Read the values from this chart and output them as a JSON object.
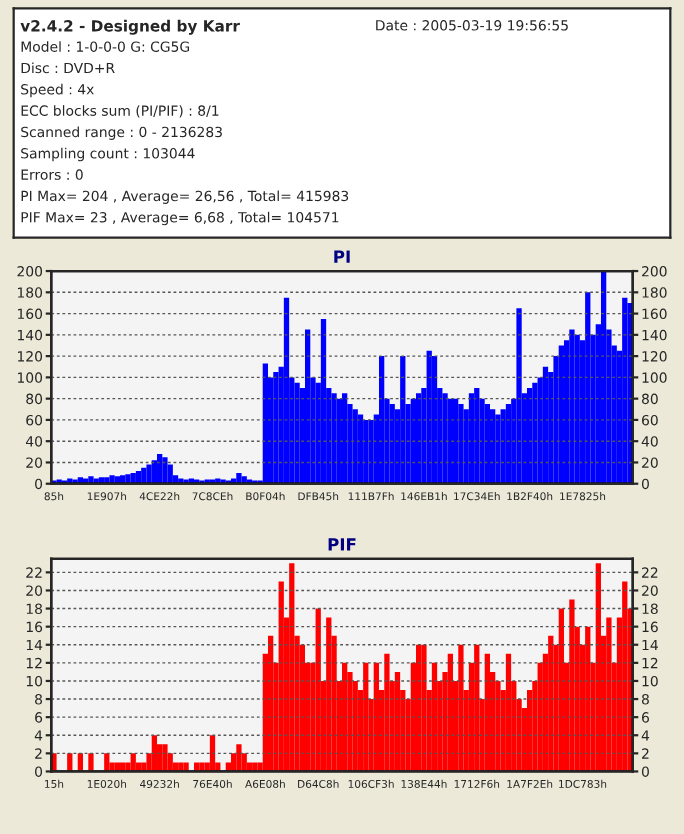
{
  "chart_data": [
    {
      "type": "other",
      "title": "v2.4.2 - Designed by Karr",
      "annotations": [
        "Date : 2005-03-19 19:56:55",
        "Model : 1-0-0-0 G: CG5G",
        "Disc : DVD+R",
        "Speed : 4x",
        "ECC blocks sum (PI/PIF) : 8/1",
        "Scanned range : 0 - 2136283",
        "Sampling count : 103044",
        "Errors : 0",
        "PI Max= 204 , Average= 26,56 , Total= 415983",
        "PIF Max= 23 , Average= 6,68 , Total= 104571"
      ]
    },
    {
      "type": "bar",
      "title": "PI",
      "grid": "y",
      "ylim": [
        0,
        200
      ],
      "yticks": [
        0,
        20,
        40,
        60,
        80,
        100,
        120,
        140,
        160,
        180,
        200
      ],
      "y2lim": [
        0,
        200
      ],
      "y2ticks": [
        0,
        20,
        40,
        60,
        80,
        100,
        120,
        140,
        160,
        180,
        200
      ],
      "categories": [
        "85h",
        null,
        null,
        null,
        null,
        null,
        null,
        null,
        null,
        null,
        "1E907h",
        null,
        null,
        null,
        null,
        null,
        null,
        null,
        null,
        null,
        "4CE22h",
        null,
        null,
        null,
        null,
        null,
        null,
        null,
        null,
        null,
        "7C8CEh",
        null,
        null,
        null,
        null,
        null,
        null,
        null,
        null,
        null,
        "B0F04h",
        null,
        null,
        null,
        null,
        null,
        null,
        null,
        null,
        null,
        "DFB45h",
        null,
        null,
        null,
        null,
        null,
        null,
        null,
        null,
        null,
        "111B7Fh",
        null,
        null,
        null,
        null,
        null,
        null,
        null,
        null,
        null,
        "146EB1h",
        null,
        null,
        null,
        null,
        null,
        null,
        null,
        null,
        null,
        "17C34Eh",
        null,
        null,
        null,
        null,
        null,
        null,
        null,
        null,
        null,
        "1B2F40h",
        null,
        null,
        null,
        null,
        null,
        null,
        null,
        null,
        null,
        "1E7825h",
        null,
        null,
        null,
        null,
        null,
        null,
        null,
        null,
        null
      ],
      "series": [
        {
          "color": "#0000ff",
          "values": [
            3,
            4,
            3,
            5,
            4,
            6,
            5,
            7,
            5,
            6,
            6,
            8,
            7,
            8,
            9,
            10,
            12,
            15,
            18,
            22,
            28,
            25,
            18,
            8,
            5,
            4,
            5,
            4,
            3,
            4,
            4,
            5,
            4,
            3,
            5,
            10,
            7,
            4,
            3,
            3,
            113,
            100,
            105,
            110,
            175,
            100,
            95,
            90,
            145,
            100,
            95,
            155,
            90,
            85,
            80,
            85,
            75,
            70,
            65,
            60,
            60,
            65,
            120,
            80,
            75,
            70,
            120,
            75,
            80,
            85,
            90,
            125,
            120,
            90,
            85,
            80,
            80,
            75,
            70,
            85,
            90,
            80,
            75,
            70,
            65,
            70,
            75,
            80,
            165,
            85,
            90,
            95,
            100,
            110,
            105,
            120,
            130,
            135,
            145,
            140,
            135,
            180,
            140,
            150,
            200,
            145,
            130,
            125,
            175,
            170
          ]
        }
      ]
    },
    {
      "type": "bar",
      "title": "PIF",
      "grid": "y",
      "ylim": [
        0,
        23.5
      ],
      "yticks": [
        0,
        2,
        4,
        6,
        8,
        10,
        12,
        14,
        16,
        18,
        20,
        22
      ],
      "y2lim": [
        0,
        23.5
      ],
      "y2ticks": [
        0,
        2,
        4,
        6,
        8,
        10,
        12,
        14,
        16,
        18,
        20,
        22
      ],
      "categories": [
        "15h",
        null,
        null,
        null,
        null,
        null,
        null,
        null,
        null,
        null,
        "1E020h",
        null,
        null,
        null,
        null,
        null,
        null,
        null,
        null,
        null,
        "49232h",
        null,
        null,
        null,
        null,
        null,
        null,
        null,
        null,
        null,
        "76E40h",
        null,
        null,
        null,
        null,
        null,
        null,
        null,
        null,
        null,
        "A6E08h",
        null,
        null,
        null,
        null,
        null,
        null,
        null,
        null,
        null,
        "D64C8h",
        null,
        null,
        null,
        null,
        null,
        null,
        null,
        null,
        null,
        "106CF3h",
        null,
        null,
        null,
        null,
        null,
        null,
        null,
        null,
        null,
        "138E44h",
        null,
        null,
        null,
        null,
        null,
        null,
        null,
        null,
        null,
        "1712F6h",
        null,
        null,
        null,
        null,
        null,
        null,
        null,
        null,
        null,
        "1A7F2Eh",
        null,
        null,
        null,
        null,
        null,
        null,
        null,
        null,
        null,
        "1DC783h",
        null,
        null,
        null,
        null,
        null,
        null,
        null,
        null,
        null
      ],
      "series": [
        {
          "color": "#ff0000",
          "values": [
            2,
            0,
            0,
            2,
            0,
            2,
            0,
            2,
            0,
            0,
            2,
            1,
            1,
            1,
            1,
            2,
            1,
            1,
            2,
            4,
            3,
            3,
            2,
            1,
            1,
            1,
            0,
            1,
            1,
            1,
            4,
            1,
            0,
            1,
            2,
            3,
            2,
            1,
            1,
            1,
            13,
            15,
            12,
            21,
            17,
            23,
            15,
            14,
            12,
            12,
            18,
            10,
            17,
            15,
            10,
            12,
            11,
            10,
            9,
            12,
            8,
            12,
            9,
            13,
            10,
            11,
            9,
            8,
            12,
            14,
            14,
            9,
            12,
            10,
            11,
            13,
            10,
            14,
            9,
            12,
            14,
            8,
            13,
            11,
            10,
            9,
            13,
            10,
            8,
            7,
            9,
            10,
            12,
            13,
            15,
            14,
            18,
            12,
            19,
            16,
            14,
            16,
            12,
            23,
            15,
            17,
            12,
            17,
            21,
            18
          ]
        }
      ]
    }
  ]
}
